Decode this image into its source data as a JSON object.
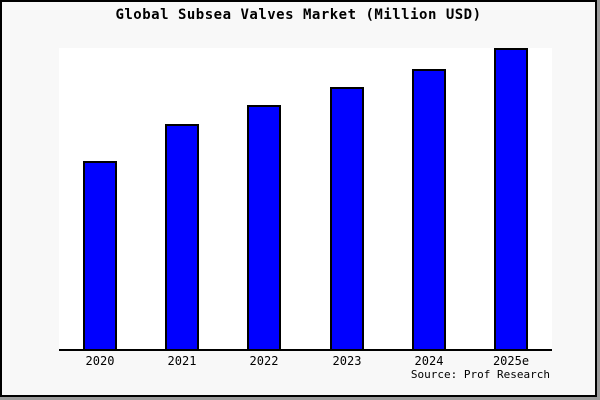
{
  "window": {
    "background_color": "#f8f8f8",
    "border_color": "#000000",
    "edge_shadow_color": "#9a9a9a"
  },
  "header": {
    "title": "Global Subsea Valves Market (Million USD)"
  },
  "footer": {
    "source_label": "Source: Prof Research"
  },
  "chart_data": {
    "type": "bar",
    "title": "Global Subsea Valves Market (Million USD)",
    "categories": [
      "2020",
      "2021",
      "2022",
      "2023",
      "2024",
      "2025e"
    ],
    "values": [
      188,
      225,
      244,
      262,
      280,
      301
    ],
    "values_note": "Y-axis has no visible scale, ticks or gridlines; values are relative bar heights measured in pixels",
    "xlabel": "",
    "ylabel": "",
    "legend": false,
    "grid": false,
    "y_axis_visible": false,
    "plot_background": "#ffffff",
    "axis_line_color": "#000000",
    "bar_color": "#0000ff",
    "bar_border_color": "#000000"
  }
}
